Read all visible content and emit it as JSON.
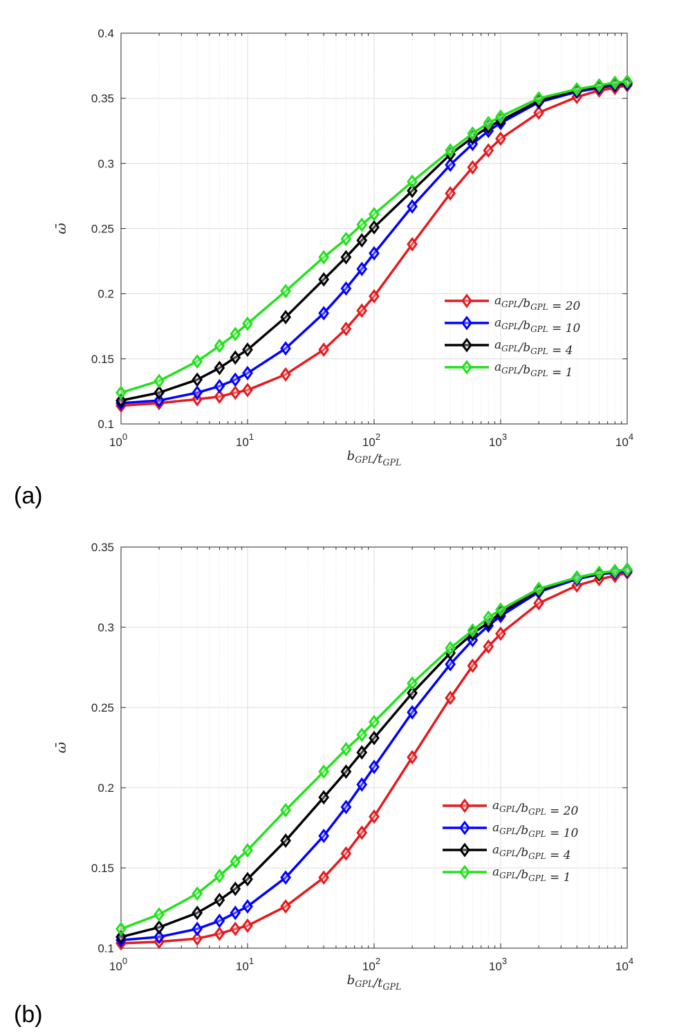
{
  "chart_data": [
    {
      "type": "line",
      "panel_label": "(a)",
      "xlabel": "b_GPL/t_GPL",
      "ylabel": "ω̄",
      "xscale": "log",
      "xlim": [
        1,
        10000
      ],
      "ylim": [
        0.1,
        0.4
      ],
      "yticks": [
        "0.1",
        "0.15",
        "0.2",
        "0.25",
        "0.3",
        "0.35",
        "0.4"
      ],
      "xticks": [
        {
          "base": "10",
          "exp": "0"
        },
        {
          "base": "10",
          "exp": "1"
        },
        {
          "base": "10",
          "exp": "2"
        },
        {
          "base": "10",
          "exp": "3"
        },
        {
          "base": "10",
          "exp": "4"
        }
      ],
      "grid": true,
      "legend_position": "lower-right",
      "x": [
        1,
        2,
        4,
        6,
        8,
        10,
        20,
        40,
        60,
        80,
        100,
        200,
        400,
        600,
        800,
        1000,
        2000,
        4000,
        6000,
        8000,
        10000
      ],
      "series": [
        {
          "name": "a_GPL/b_GPL = 20",
          "color": "#e41a1c",
          "values": [
            0.114,
            0.116,
            0.119,
            0.121,
            0.124,
            0.126,
            0.138,
            0.157,
            0.173,
            0.187,
            0.198,
            0.238,
            0.277,
            0.297,
            0.31,
            0.319,
            0.339,
            0.351,
            0.356,
            0.358,
            0.36
          ]
        },
        {
          "name": "a_GPL/b_GPL = 10",
          "color": "#0000ff",
          "values": [
            0.116,
            0.118,
            0.124,
            0.129,
            0.134,
            0.139,
            0.158,
            0.185,
            0.204,
            0.219,
            0.231,
            0.267,
            0.299,
            0.315,
            0.325,
            0.331,
            0.347,
            0.355,
            0.358,
            0.36,
            0.361
          ]
        },
        {
          "name": "a_GPL/b_GPL = 4",
          "color": "#000000",
          "values": [
            0.118,
            0.124,
            0.134,
            0.143,
            0.151,
            0.157,
            0.182,
            0.211,
            0.228,
            0.241,
            0.251,
            0.279,
            0.307,
            0.32,
            0.328,
            0.333,
            0.348,
            0.356,
            0.359,
            0.361,
            0.362
          ]
        },
        {
          "name": "a_GPL/b_GPL = 1",
          "color": "#22e01c",
          "values": [
            0.124,
            0.133,
            0.148,
            0.16,
            0.169,
            0.177,
            0.202,
            0.228,
            0.242,
            0.253,
            0.261,
            0.286,
            0.31,
            0.323,
            0.331,
            0.336,
            0.35,
            0.357,
            0.36,
            0.362,
            0.363
          ]
        }
      ]
    },
    {
      "type": "line",
      "panel_label": "(b)",
      "xlabel": "b_GPL/t_GPL",
      "ylabel": "ω̄",
      "xscale": "log",
      "xlim": [
        1,
        10000
      ],
      "ylim": [
        0.1,
        0.35
      ],
      "yticks": [
        "0.1",
        "0.15",
        "0.2",
        "0.25",
        "0.3",
        "0.35"
      ],
      "xticks": [
        {
          "base": "10",
          "exp": "0"
        },
        {
          "base": "10",
          "exp": "1"
        },
        {
          "base": "10",
          "exp": "2"
        },
        {
          "base": "10",
          "exp": "3"
        },
        {
          "base": "10",
          "exp": "4"
        }
      ],
      "grid": true,
      "legend_position": "lower-right",
      "x": [
        1,
        2,
        4,
        6,
        8,
        10,
        20,
        40,
        60,
        80,
        100,
        200,
        400,
        600,
        800,
        1000,
        2000,
        4000,
        6000,
        8000,
        10000
      ],
      "series": [
        {
          "name": "a_GPL/b_GPL = 20",
          "color": "#e41a1c",
          "values": [
            0.103,
            0.104,
            0.106,
            0.109,
            0.112,
            0.114,
            0.126,
            0.144,
            0.159,
            0.172,
            0.182,
            0.219,
            0.256,
            0.276,
            0.288,
            0.296,
            0.315,
            0.326,
            0.33,
            0.332,
            0.334
          ]
        },
        {
          "name": "a_GPL/b_GPL = 10",
          "color": "#0000ff",
          "values": [
            0.105,
            0.107,
            0.112,
            0.117,
            0.122,
            0.126,
            0.144,
            0.17,
            0.188,
            0.202,
            0.213,
            0.247,
            0.277,
            0.292,
            0.301,
            0.307,
            0.322,
            0.33,
            0.333,
            0.334,
            0.335
          ]
        },
        {
          "name": "a_GPL/b_GPL = 4",
          "color": "#000000",
          "values": [
            0.107,
            0.113,
            0.122,
            0.13,
            0.137,
            0.143,
            0.167,
            0.194,
            0.21,
            0.222,
            0.231,
            0.259,
            0.284,
            0.296,
            0.303,
            0.309,
            0.323,
            0.331,
            0.333,
            0.335,
            0.336
          ]
        },
        {
          "name": "a_GPL/b_GPL = 1",
          "color": "#22e01c",
          "values": [
            0.112,
            0.121,
            0.134,
            0.145,
            0.154,
            0.161,
            0.186,
            0.21,
            0.224,
            0.233,
            0.241,
            0.265,
            0.287,
            0.298,
            0.306,
            0.311,
            0.324,
            0.331,
            0.334,
            0.335,
            0.336
          ]
        }
      ]
    }
  ]
}
